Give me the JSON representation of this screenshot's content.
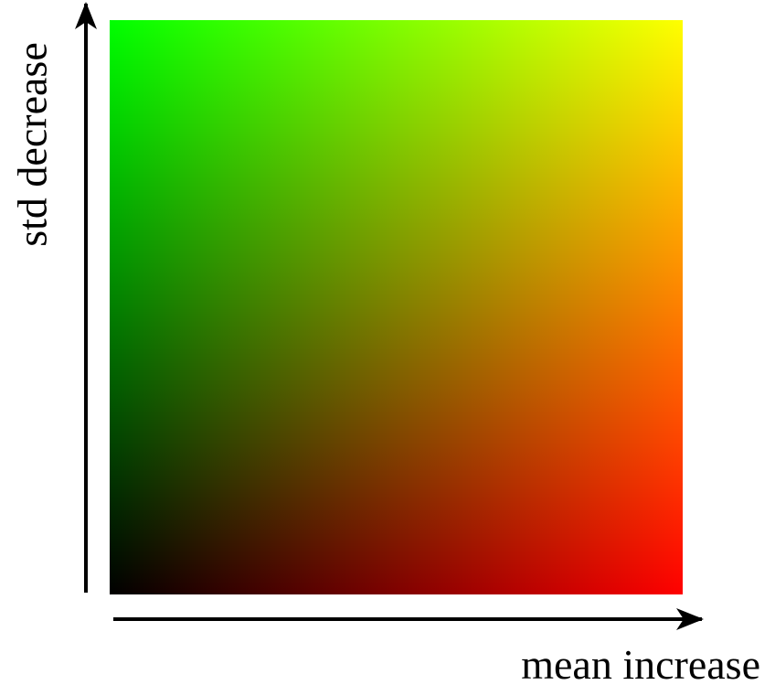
{
  "labels": {
    "x_axis": "mean increase",
    "y_axis": "std decrease"
  },
  "colors": {
    "bottom_left": "#000000",
    "bottom_right": "#ff0000",
    "top_left": "#00ff00",
    "top_right": "#ffff00",
    "axis": "#000000"
  }
}
